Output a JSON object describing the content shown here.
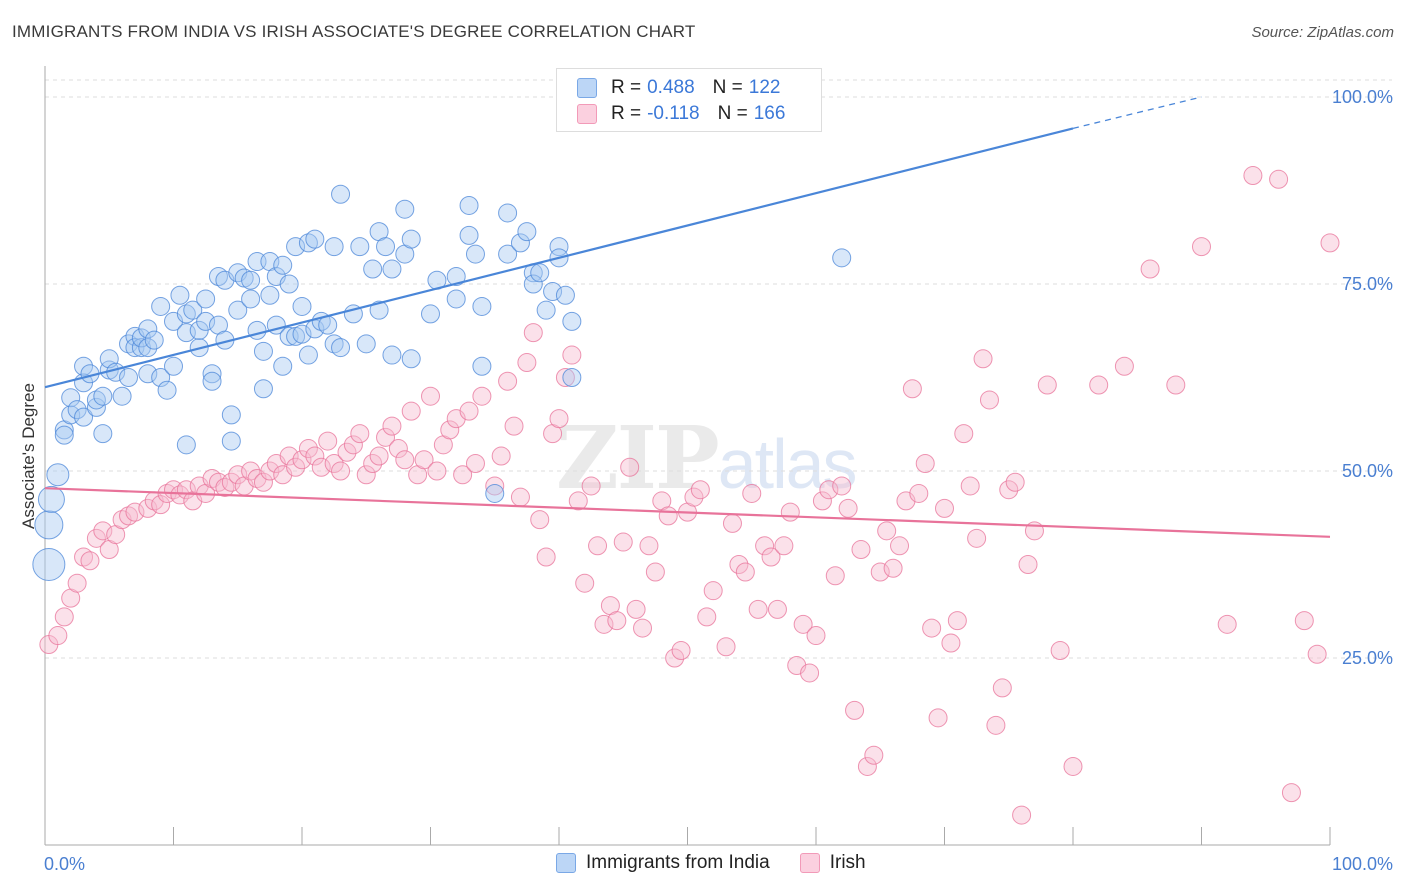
{
  "header": {
    "title": "IMMIGRANTS FROM INDIA VS IRISH ASSOCIATE'S DEGREE CORRELATION CHART",
    "source": "Source: ZipAtlas.com"
  },
  "watermark": {
    "zip": "ZIP",
    "atlas": "atlas"
  },
  "legend": {
    "r_label": "R =",
    "n_label": "N =",
    "rows": [
      {
        "r": "0.488",
        "n": "122",
        "color": "#8fb8ef"
      },
      {
        "r": "-0.118",
        "n": "166",
        "color": "#f5aac2"
      }
    ]
  },
  "bottom_legend": [
    {
      "label": "Immigrants from India",
      "color": "#8fb8ef"
    },
    {
      "label": "Irish",
      "color": "#f5aac2"
    }
  ],
  "chart_data": {
    "type": "scatter",
    "title": "IMMIGRANTS FROM INDIA VS IRISH ASSOCIATE'S DEGREE CORRELATION CHART",
    "xlabel": "",
    "ylabel": "Associate's Degree",
    "xlim": [
      0,
      100
    ],
    "ylim": [
      0,
      100
    ],
    "x_tick_labels": [
      "0.0%",
      "100.0%"
    ],
    "y_tick_labels": [
      {
        "value": 100,
        "label": "100.0%"
      },
      {
        "value": 75,
        "label": "75.0%"
      },
      {
        "value": 50,
        "label": "50.0%"
      },
      {
        "value": 25,
        "label": "25.0%"
      }
    ],
    "grid": "horizontal dashed",
    "legend": "top-center",
    "series": [
      {
        "name": "Immigrants from India",
        "color": "#4a86d8",
        "fill": "#a9c9f2",
        "trend": {
          "x0": 0,
          "y0": 61.2,
          "x1": 80,
          "y1": 95.8,
          "dashed_to_x": 90,
          "dashed_to_y": 100
        },
        "points": [
          [
            0.3,
            37.5
          ],
          [
            0.3,
            42.8
          ],
          [
            0.5,
            46.2
          ],
          [
            1,
            49.5
          ],
          [
            1.5,
            55.5
          ],
          [
            1.5,
            54.8
          ],
          [
            2,
            57.5
          ],
          [
            2,
            59.8
          ],
          [
            2.5,
            58.2
          ],
          [
            3,
            57.2
          ],
          [
            3,
            61.8
          ],
          [
            3,
            64
          ],
          [
            3.5,
            63
          ],
          [
            4,
            58.5
          ],
          [
            4,
            59.5
          ],
          [
            4.5,
            55
          ],
          [
            4.5,
            60
          ],
          [
            5,
            63.5
          ],
          [
            5,
            65
          ],
          [
            5.5,
            63.2
          ],
          [
            6,
            60
          ],
          [
            6.5,
            62.5
          ],
          [
            6.5,
            67
          ],
          [
            7,
            68
          ],
          [
            7,
            66.5
          ],
          [
            7.5,
            66.5
          ],
          [
            7.5,
            67.8
          ],
          [
            8,
            63
          ],
          [
            8,
            69
          ],
          [
            8,
            66.5
          ],
          [
            8.5,
            67.5
          ],
          [
            9,
            62.5
          ],
          [
            9,
            72
          ],
          [
            9.5,
            60.8
          ],
          [
            10,
            64
          ],
          [
            10,
            70
          ],
          [
            10.5,
            73.5
          ],
          [
            11,
            71
          ],
          [
            11,
            53.5
          ],
          [
            11,
            68.5
          ],
          [
            11.5,
            71.5
          ],
          [
            12,
            66.5
          ],
          [
            12,
            68.8
          ],
          [
            12.5,
            73
          ],
          [
            12.5,
            70
          ],
          [
            13,
            63
          ],
          [
            13,
            62
          ],
          [
            13.5,
            76
          ],
          [
            13.5,
            69.5
          ],
          [
            14,
            75.5
          ],
          [
            14,
            67.5
          ],
          [
            14.5,
            57.5
          ],
          [
            14.5,
            54
          ],
          [
            15,
            71.5
          ],
          [
            15,
            76.5
          ],
          [
            15.5,
            75.8
          ],
          [
            16,
            75.5
          ],
          [
            16,
            73
          ],
          [
            16.5,
            68.8
          ],
          [
            16.5,
            78
          ],
          [
            17,
            66
          ],
          [
            17,
            61
          ],
          [
            17.5,
            78
          ],
          [
            17.5,
            73.5
          ],
          [
            18,
            76
          ],
          [
            18,
            69.5
          ],
          [
            18.5,
            64
          ],
          [
            18.5,
            77.5
          ],
          [
            19,
            75
          ],
          [
            19,
            68
          ],
          [
            19.5,
            80
          ],
          [
            19.5,
            68
          ],
          [
            20,
            72
          ],
          [
            20,
            68.3
          ],
          [
            20.5,
            80.5
          ],
          [
            20.5,
            65.5
          ],
          [
            21,
            81
          ],
          [
            21,
            69
          ],
          [
            21.5,
            70
          ],
          [
            22,
            69.5
          ],
          [
            22.5,
            80
          ],
          [
            22.5,
            67
          ],
          [
            23,
            87
          ],
          [
            23,
            66.5
          ],
          [
            24,
            71
          ],
          [
            24.5,
            80
          ],
          [
            25,
            67
          ],
          [
            25.5,
            77
          ],
          [
            26,
            71.5
          ],
          [
            26,
            82
          ],
          [
            26.5,
            80
          ],
          [
            27,
            65.5
          ],
          [
            27,
            77
          ],
          [
            28,
            85
          ],
          [
            28,
            79
          ],
          [
            28.5,
            65
          ],
          [
            28.5,
            81
          ],
          [
            30,
            71
          ],
          [
            30.5,
            75.5
          ],
          [
            32,
            73
          ],
          [
            32,
            76
          ],
          [
            33,
            85.5
          ],
          [
            33,
            81.5
          ],
          [
            33.5,
            79
          ],
          [
            34,
            72
          ],
          [
            34,
            64
          ],
          [
            35,
            47
          ],
          [
            36,
            84.5
          ],
          [
            36,
            79
          ],
          [
            37,
            80.5
          ],
          [
            37.5,
            82
          ],
          [
            38,
            76.5
          ],
          [
            38,
            75
          ],
          [
            38.5,
            76.5
          ],
          [
            39,
            71.5
          ],
          [
            39.5,
            74
          ],
          [
            40,
            80
          ],
          [
            40,
            78.5
          ],
          [
            40.5,
            73.5
          ],
          [
            41,
            62.5
          ],
          [
            41,
            70
          ],
          [
            62,
            78.5
          ]
        ]
      },
      {
        "name": "Irish",
        "color": "#e8739a",
        "fill": "#f7bcd0",
        "trend": {
          "x0": 0,
          "y0": 47.7,
          "x1": 100,
          "y1": 41.2
        },
        "points": [
          [
            0.3,
            26.8
          ],
          [
            1,
            28
          ],
          [
            1.5,
            30.5
          ],
          [
            2,
            33
          ],
          [
            2.5,
            35
          ],
          [
            3,
            38.5
          ],
          [
            3.5,
            38
          ],
          [
            4,
            41
          ],
          [
            4.5,
            42
          ],
          [
            5,
            39.5
          ],
          [
            5.5,
            41.5
          ],
          [
            6,
            43.5
          ],
          [
            6.5,
            44
          ],
          [
            7,
            44.5
          ],
          [
            8,
            45
          ],
          [
            8.5,
            46
          ],
          [
            9,
            45.5
          ],
          [
            9.5,
            47
          ],
          [
            10,
            47.5
          ],
          [
            10.5,
            46.8
          ],
          [
            11,
            47.5
          ],
          [
            11.5,
            46
          ],
          [
            12,
            48
          ],
          [
            12.5,
            47
          ],
          [
            13,
            49
          ],
          [
            13.5,
            48.5
          ],
          [
            14,
            47.8
          ],
          [
            14.5,
            48.5
          ],
          [
            15,
            49.5
          ],
          [
            15.5,
            48
          ],
          [
            16,
            50
          ],
          [
            16.5,
            49
          ],
          [
            17,
            48.5
          ],
          [
            17.5,
            50
          ],
          [
            18,
            51
          ],
          [
            18.5,
            49.5
          ],
          [
            19,
            52
          ],
          [
            19.5,
            50.5
          ],
          [
            20,
            51.5
          ],
          [
            20.5,
            53
          ],
          [
            21,
            52
          ],
          [
            21.5,
            50.5
          ],
          [
            22,
            54
          ],
          [
            22.5,
            51
          ],
          [
            23,
            50
          ],
          [
            23.5,
            52.5
          ],
          [
            24,
            53.5
          ],
          [
            24.5,
            55
          ],
          [
            25,
            49.5
          ],
          [
            25.5,
            51
          ],
          [
            26,
            52
          ],
          [
            26.5,
            54.5
          ],
          [
            27,
            56
          ],
          [
            27.5,
            53
          ],
          [
            28,
            51.5
          ],
          [
            28.5,
            58
          ],
          [
            29,
            49.5
          ],
          [
            29.5,
            51.5
          ],
          [
            30,
            60
          ],
          [
            30.5,
            50
          ],
          [
            31,
            53.5
          ],
          [
            31.5,
            55.5
          ],
          [
            32,
            57
          ],
          [
            32.5,
            49.5
          ],
          [
            33,
            58
          ],
          [
            33.5,
            51
          ],
          [
            34,
            60
          ],
          [
            35,
            48
          ],
          [
            35.5,
            52
          ],
          [
            36,
            62
          ],
          [
            36.5,
            56
          ],
          [
            37,
            46.5
          ],
          [
            37.5,
            64.5
          ],
          [
            38,
            68.5
          ],
          [
            38.5,
            43.5
          ],
          [
            39,
            38.5
          ],
          [
            39.5,
            55
          ],
          [
            40,
            57
          ],
          [
            40.5,
            62.5
          ],
          [
            41,
            65.5
          ],
          [
            41.5,
            46
          ],
          [
            42,
            35
          ],
          [
            42.5,
            48
          ],
          [
            43,
            40
          ],
          [
            43.5,
            29.5
          ],
          [
            44,
            32
          ],
          [
            44.5,
            30
          ],
          [
            45,
            40.5
          ],
          [
            45.5,
            50.5
          ],
          [
            46,
            31.5
          ],
          [
            46.5,
            29
          ],
          [
            47,
            40
          ],
          [
            47.5,
            36.5
          ],
          [
            48,
            46
          ],
          [
            48.5,
            44
          ],
          [
            49,
            25
          ],
          [
            49.5,
            26
          ],
          [
            50,
            44.5
          ],
          [
            50.5,
            46.5
          ],
          [
            51,
            47.5
          ],
          [
            51.5,
            30.5
          ],
          [
            52,
            34
          ],
          [
            53,
            26.5
          ],
          [
            53.5,
            43
          ],
          [
            54,
            37.5
          ],
          [
            54.5,
            36.5
          ],
          [
            55,
            47
          ],
          [
            55.5,
            31.5
          ],
          [
            56,
            40
          ],
          [
            56.5,
            38.5
          ],
          [
            57,
            31.5
          ],
          [
            57.5,
            40
          ],
          [
            58,
            44.5
          ],
          [
            58.5,
            24
          ],
          [
            59,
            29.5
          ],
          [
            59.5,
            23
          ],
          [
            60,
            28
          ],
          [
            60.5,
            46
          ],
          [
            61,
            47.5
          ],
          [
            61.5,
            36
          ],
          [
            62,
            48
          ],
          [
            62.5,
            45
          ],
          [
            63,
            18
          ],
          [
            63.5,
            39.5
          ],
          [
            64,
            10.5
          ],
          [
            64.5,
            12
          ],
          [
            65,
            36.5
          ],
          [
            65.5,
            42
          ],
          [
            66,
            37
          ],
          [
            66.5,
            40
          ],
          [
            67,
            46
          ],
          [
            67.5,
            61
          ],
          [
            68,
            47
          ],
          [
            68.5,
            51
          ],
          [
            69,
            29
          ],
          [
            69.5,
            17
          ],
          [
            70,
            45
          ],
          [
            70.5,
            27
          ],
          [
            71,
            30
          ],
          [
            71.5,
            55
          ],
          [
            72,
            48
          ],
          [
            72.5,
            41
          ],
          [
            73,
            65
          ],
          [
            73.5,
            59.5
          ],
          [
            74,
            16
          ],
          [
            74.5,
            21
          ],
          [
            75,
            47.5
          ],
          [
            75.5,
            48.5
          ],
          [
            76,
            4
          ],
          [
            76.5,
            37.5
          ],
          [
            77,
            42
          ],
          [
            78,
            61.5
          ],
          [
            79,
            26
          ],
          [
            80,
            10.5
          ],
          [
            82,
            61.5
          ],
          [
            84,
            64
          ],
          [
            86,
            77
          ],
          [
            88,
            61.5
          ],
          [
            90,
            80
          ],
          [
            92,
            29.5
          ],
          [
            94,
            89.5
          ],
          [
            96,
            89
          ],
          [
            97,
            7
          ],
          [
            98,
            30
          ],
          [
            99,
            25.5
          ],
          [
            100,
            80.5
          ]
        ]
      }
    ]
  }
}
